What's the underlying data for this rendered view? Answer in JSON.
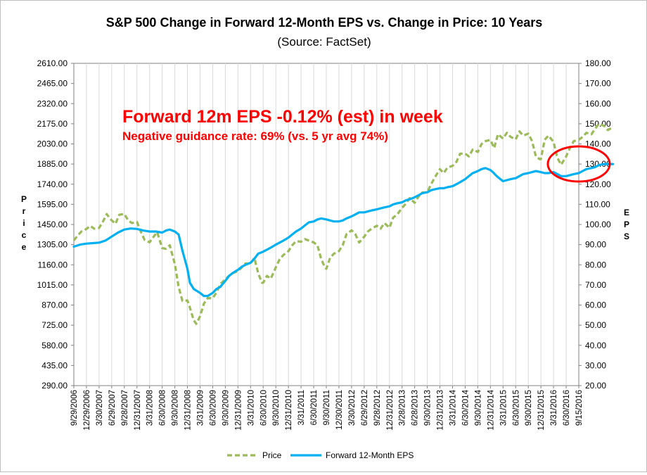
{
  "chart_data": {
    "type": "line",
    "title": "S&P 500 Change in Forward 12-Month EPS vs. Change in Price: 10 Years",
    "subtitle": "(Source: FactSet)",
    "ylabel_left": "Price",
    "ylabel_right": "EPS",
    "y_left": {
      "min": 290,
      "max": 2610,
      "ticks": [
        "2610.00",
        "2465.00",
        "2320.00",
        "2175.00",
        "2030.00",
        "1885.00",
        "1740.00",
        "1595.00",
        "1450.00",
        "1305.00",
        "1160.00",
        "1015.00",
        "870.00",
        "725.00",
        "580.00",
        "435.00",
        "290.00"
      ]
    },
    "y_right": {
      "min": 20,
      "max": 180,
      "ticks": [
        "180.00",
        "170.00",
        "160.00",
        "150.00",
        "140.00",
        "130.00",
        "120.00",
        "110.00",
        "100.00",
        "90.00",
        "80.00",
        "70.00",
        "60.00",
        "50.00",
        "40.00",
        "30.00",
        "20.00"
      ]
    },
    "x_labels": [
      "9/29/2006",
      "12/29/2006",
      "3/30/2007",
      "6/29/2007",
      "9/28/2007",
      "12/31/2007",
      "3/31/2008",
      "6/30/2008",
      "9/30/2008",
      "12/31/2008",
      "3/31/2009",
      "6/30/2009",
      "9/30/2009",
      "12/31/2009",
      "3/31/2010",
      "6/30/2010",
      "9/30/2010",
      "12/31/2010",
      "3/31/2011",
      "6/30/2011",
      "9/30/2011",
      "12/30/2011",
      "3/30/2012",
      "6/29/2012",
      "9/28/2012",
      "12/31/2012",
      "3/28/2013",
      "6/28/2013",
      "9/30/2013",
      "12/31/2013",
      "3/31/2014",
      "6/30/2014",
      "9/30/2014",
      "12/31/2014",
      "3/31/2015",
      "6/30/2015",
      "9/30/2015",
      "12/31/2015",
      "3/31/2016",
      "6/30/2016",
      "9/15/2016"
    ],
    "series": [
      {
        "name": "Price",
        "axis": "left",
        "color": "#9bbb59",
        "style": "dashed",
        "points": [
          [
            0,
            1335
          ],
          [
            0.3,
            1370
          ],
          [
            0.6,
            1400
          ],
          [
            1,
            1418
          ],
          [
            1.3,
            1440
          ],
          [
            1.6,
            1420
          ],
          [
            2,
            1425
          ],
          [
            2.3,
            1470
          ],
          [
            2.6,
            1525
          ],
          [
            2.8,
            1500
          ],
          [
            3,
            1480
          ],
          [
            3.3,
            1455
          ],
          [
            3.6,
            1520
          ],
          [
            4,
            1526
          ],
          [
            4.3,
            1480
          ],
          [
            4.6,
            1460
          ],
          [
            5,
            1468
          ],
          [
            5.3,
            1400
          ],
          [
            5.6,
            1340
          ],
          [
            6,
            1322
          ],
          [
            6.3,
            1360
          ],
          [
            6.6,
            1395
          ],
          [
            7,
            1280
          ],
          [
            7.3,
            1275
          ],
          [
            7.6,
            1300
          ],
          [
            8,
            1166
          ],
          [
            8.3,
            1000
          ],
          [
            8.6,
            900
          ],
          [
            9,
            903
          ],
          [
            9.2,
            850
          ],
          [
            9.5,
            760
          ],
          [
            9.7,
            735
          ],
          [
            10,
            790
          ],
          [
            10.3,
            880
          ],
          [
            10.6,
            920
          ],
          [
            11,
            919
          ],
          [
            11.3,
            960
          ],
          [
            11.6,
            1020
          ],
          [
            12,
            1057
          ],
          [
            12.3,
            1080
          ],
          [
            12.6,
            1100
          ],
          [
            13,
            1115
          ],
          [
            13.3,
            1140
          ],
          [
            13.6,
            1170
          ],
          [
            14,
            1169
          ],
          [
            14.3,
            1210
          ],
          [
            14.6,
            1100
          ],
          [
            14.9,
            1030
          ],
          [
            15,
            1031
          ],
          [
            15.3,
            1080
          ],
          [
            15.6,
            1060
          ],
          [
            16,
            1141
          ],
          [
            16.3,
            1200
          ],
          [
            16.6,
            1230
          ],
          [
            17,
            1258
          ],
          [
            17.3,
            1300
          ],
          [
            17.6,
            1330
          ],
          [
            18,
            1326
          ],
          [
            18.3,
            1345
          ],
          [
            18.6,
            1335
          ],
          [
            19,
            1321
          ],
          [
            19.3,
            1300
          ],
          [
            19.6,
            1200
          ],
          [
            19.9,
            1140
          ],
          [
            20,
            1131
          ],
          [
            20.3,
            1210
          ],
          [
            20.6,
            1240
          ],
          [
            21,
            1258
          ],
          [
            21.3,
            1300
          ],
          [
            21.6,
            1380
          ],
          [
            22,
            1408
          ],
          [
            22.3,
            1380
          ],
          [
            22.6,
            1320
          ],
          [
            23,
            1362
          ],
          [
            23.3,
            1400
          ],
          [
            23.6,
            1420
          ],
          [
            24,
            1441
          ],
          [
            24.3,
            1420
          ],
          [
            24.6,
            1460
          ],
          [
            25,
            1426
          ],
          [
            25.3,
            1500
          ],
          [
            25.6,
            1520
          ],
          [
            26,
            1569
          ],
          [
            26.3,
            1600
          ],
          [
            26.6,
            1640
          ],
          [
            27,
            1606
          ],
          [
            27.3,
            1650
          ],
          [
            27.6,
            1680
          ],
          [
            28,
            1682
          ],
          [
            28.3,
            1740
          ],
          [
            28.6,
            1790
          ],
          [
            29,
            1848
          ],
          [
            29.3,
            1820
          ],
          [
            29.6,
            1860
          ],
          [
            30,
            1872
          ],
          [
            30.3,
            1900
          ],
          [
            30.6,
            1960
          ],
          [
            31,
            1960
          ],
          [
            31.3,
            1940
          ],
          [
            31.6,
            1990
          ],
          [
            32,
            1972
          ],
          [
            32.3,
            2030
          ],
          [
            32.6,
            2050
          ],
          [
            33,
            2059
          ],
          [
            33.3,
            2000
          ],
          [
            33.6,
            2100
          ],
          [
            34,
            2068
          ],
          [
            34.3,
            2110
          ],
          [
            34.6,
            2080
          ],
          [
            35,
            2063
          ],
          [
            35.3,
            2120
          ],
          [
            35.6,
            2090
          ],
          [
            36,
            2104
          ],
          [
            36.3,
            2050
          ],
          [
            36.6,
            1940
          ],
          [
            36.9,
            1920
          ],
          [
            37,
            1920
          ],
          [
            37.3,
            2060
          ],
          [
            37.6,
            2090
          ],
          [
            38,
            2044
          ],
          [
            38.3,
            1930
          ],
          [
            38.6,
            1880
          ],
          [
            39,
            1940
          ],
          [
            39.3,
            2000
          ],
          [
            39.6,
            2050
          ],
          [
            40,
            2060
          ],
          [
            40.3,
            2080
          ],
          [
            40.6,
            2110
          ],
          [
            41,
            2099
          ],
          [
            41.3,
            2140
          ],
          [
            41.6,
            2175
          ],
          [
            42,
            2160
          ],
          [
            42.3,
            2130
          ],
          [
            42.7,
            2150
          ]
        ]
      },
      {
        "name": "Forward 12-Month EPS",
        "axis": "right",
        "color": "#00b0f0",
        "style": "solid",
        "points": [
          [
            0,
            89
          ],
          [
            0.5,
            90
          ],
          [
            1,
            90.5
          ],
          [
            2,
            91
          ],
          [
            2.5,
            92
          ],
          [
            3,
            94
          ],
          [
            3.5,
            96
          ],
          [
            4,
            97.5
          ],
          [
            4.5,
            98
          ],
          [
            5,
            97.8
          ],
          [
            5.5,
            97
          ],
          [
            6,
            96.5
          ],
          [
            6.5,
            96.5
          ],
          [
            7,
            96
          ],
          [
            7.3,
            97
          ],
          [
            7.6,
            97.5
          ],
          [
            8,
            96.5
          ],
          [
            8.3,
            95
          ],
          [
            8.6,
            87
          ],
          [
            9,
            78
          ],
          [
            9.2,
            71
          ],
          [
            9.5,
            68
          ],
          [
            10,
            66
          ],
          [
            10.3,
            64.5
          ],
          [
            10.6,
            64.5
          ],
          [
            11,
            66
          ],
          [
            11.3,
            68
          ],
          [
            11.6,
            69
          ],
          [
            12,
            72
          ],
          [
            12.3,
            74.5
          ],
          [
            12.6,
            76
          ],
          [
            13,
            77.5
          ],
          [
            13.3,
            79
          ],
          [
            13.6,
            80
          ],
          [
            14,
            81
          ],
          [
            14.3,
            83
          ],
          [
            14.6,
            85.5
          ],
          [
            15,
            86.5
          ],
          [
            15.3,
            87.5
          ],
          [
            15.6,
            88.5
          ],
          [
            16,
            90
          ],
          [
            16.3,
            91
          ],
          [
            16.6,
            92
          ],
          [
            17,
            93.5
          ],
          [
            17.3,
            95
          ],
          [
            17.6,
            96.5
          ],
          [
            18,
            98
          ],
          [
            18.3,
            99.5
          ],
          [
            18.6,
            101
          ],
          [
            19,
            101.5
          ],
          [
            19.3,
            102.5
          ],
          [
            19.6,
            103
          ],
          [
            20,
            102.5
          ],
          [
            20.3,
            102
          ],
          [
            20.6,
            101.5
          ],
          [
            21,
            101.5
          ],
          [
            21.3,
            102
          ],
          [
            21.6,
            103
          ],
          [
            22,
            104
          ],
          [
            22.3,
            105
          ],
          [
            22.6,
            106
          ],
          [
            23,
            106
          ],
          [
            23.3,
            106.5
          ],
          [
            23.6,
            107
          ],
          [
            24,
            107.5
          ],
          [
            24.3,
            108
          ],
          [
            24.6,
            108.5
          ],
          [
            25,
            109
          ],
          [
            25.3,
            110
          ],
          [
            25.6,
            110.5
          ],
          [
            26,
            111
          ],
          [
            26.3,
            112
          ],
          [
            26.6,
            112.5
          ],
          [
            27,
            113.5
          ],
          [
            27.3,
            114.5
          ],
          [
            27.6,
            115.5
          ],
          [
            28,
            116
          ],
          [
            28.3,
            117
          ],
          [
            28.6,
            117.5
          ],
          [
            29,
            118
          ],
          [
            29.3,
            118
          ],
          [
            29.6,
            118.5
          ],
          [
            30,
            119
          ],
          [
            30.3,
            120
          ],
          [
            30.6,
            121
          ],
          [
            31,
            122.5
          ],
          [
            31.3,
            124
          ],
          [
            31.6,
            125.5
          ],
          [
            32,
            126.5
          ],
          [
            32.3,
            127.5
          ],
          [
            32.6,
            128
          ],
          [
            33,
            127
          ],
          [
            33.2,
            126
          ],
          [
            33.5,
            124
          ],
          [
            33.7,
            123
          ],
          [
            34,
            121.5
          ],
          [
            34.3,
            122
          ],
          [
            34.6,
            122.5
          ],
          [
            35,
            123
          ],
          [
            35.3,
            124
          ],
          [
            35.6,
            125
          ],
          [
            36,
            125.5
          ],
          [
            36.3,
            126
          ],
          [
            36.6,
            126.5
          ],
          [
            37,
            126
          ],
          [
            37.3,
            125.5
          ],
          [
            37.6,
            125.5
          ],
          [
            38,
            126
          ],
          [
            38.3,
            125
          ],
          [
            38.6,
            124
          ],
          [
            39,
            124
          ],
          [
            39.3,
            124.5
          ],
          [
            39.6,
            125
          ],
          [
            40,
            125.5
          ],
          [
            40.3,
            126.5
          ],
          [
            40.6,
            127.5
          ],
          [
            41,
            128
          ],
          [
            41.3,
            128.5
          ],
          [
            41.6,
            129.5
          ],
          [
            42,
            130
          ],
          [
            42.3,
            130
          ],
          [
            42.7,
            130
          ]
        ]
      }
    ],
    "annotation": {
      "headline": "Forward 12m EPS -0.12% (est) in week",
      "subline": "Negative guidance rate: 69% (vs. 5 yr avg 74%)",
      "color": "#ff0000"
    },
    "legend": {
      "placement": "bottom-center",
      "entries": [
        "Price",
        "Forward 12-Month EPS"
      ]
    },
    "grid": "vertical-only",
    "highlight": {
      "shape": "ellipse",
      "color": "#ff0000",
      "target": "latest EPS values"
    }
  }
}
